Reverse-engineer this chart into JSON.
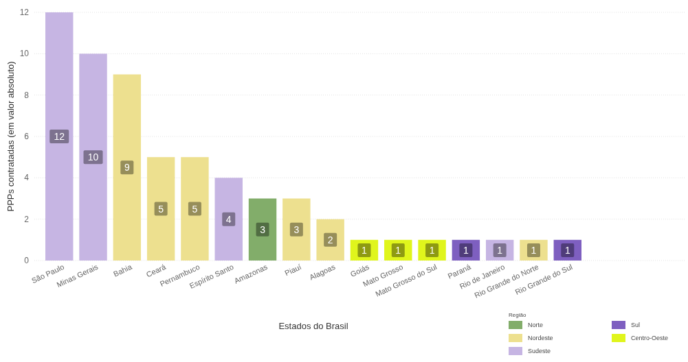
{
  "chart_data": {
    "type": "bar",
    "xlabel": "Estados do Brasil",
    "ylabel": "PPPs contratadas (em valor absoluto)",
    "legend_title": "Região",
    "categories": [
      "São Paulo",
      "Minas Gerais",
      "Bahia",
      "Ceará",
      "Pernambuco",
      "Espírito Santo",
      "Amazonas",
      "Piauí",
      "Alagoas",
      "Goiás",
      "Mato Grosso",
      "Mato Grosso do Sul",
      "Paraná",
      "Rio de Janeiro",
      "Rio Grande do Norte",
      "Rio Grande do Sul"
    ],
    "series": [
      {
        "name": "Norte",
        "color": "#82ad6a",
        "values": [
          null,
          null,
          null,
          null,
          null,
          null,
          3,
          null,
          null,
          null,
          null,
          null,
          null,
          null,
          null,
          null
        ]
      },
      {
        "name": "Nordeste",
        "color": "#ede08f",
        "values": [
          null,
          null,
          9,
          5,
          5,
          null,
          null,
          3,
          2,
          null,
          null,
          null,
          null,
          null,
          1,
          null
        ]
      },
      {
        "name": "Sudeste",
        "color": "#c6b5e3",
        "values": [
          12,
          10,
          null,
          null,
          null,
          4,
          null,
          null,
          null,
          null,
          null,
          null,
          null,
          1,
          null,
          null
        ]
      },
      {
        "name": "Sul",
        "color": "#7e5fc0",
        "values": [
          null,
          null,
          null,
          null,
          null,
          null,
          null,
          null,
          null,
          null,
          null,
          null,
          1,
          null,
          null,
          1
        ]
      },
      {
        "name": "Centro-Oeste",
        "color": "#e0f51c",
        "values": [
          null,
          null,
          null,
          null,
          null,
          null,
          null,
          null,
          null,
          1,
          1,
          1,
          null,
          null,
          null,
          null
        ]
      }
    ],
    "data_labels": true,
    "ylim": [
      0,
      12
    ],
    "yticks": [
      0,
      2,
      4,
      6,
      8,
      10,
      12
    ],
    "grid": "y",
    "legend": "bottom right"
  }
}
